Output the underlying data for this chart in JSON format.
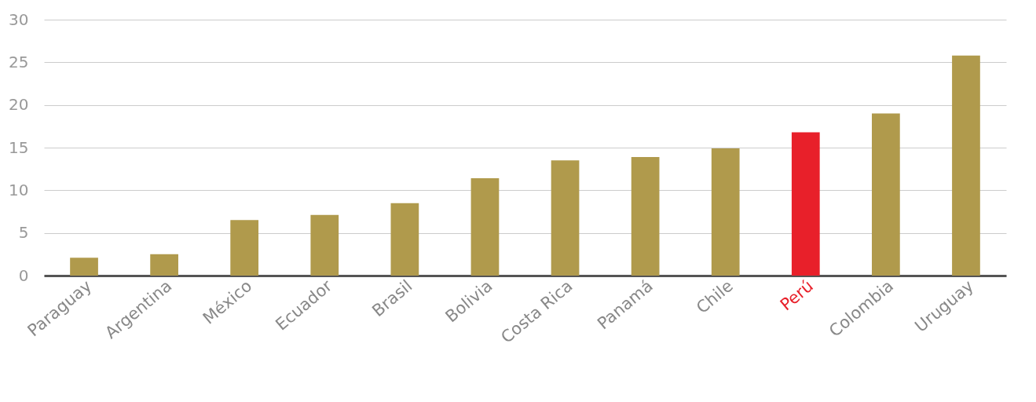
{
  "chart_data": {
    "type": "bar",
    "categories": [
      "Paraguay",
      "Argentina",
      "México",
      "Ecuador",
      "Brasil",
      "Bolivia",
      "Costa Rica",
      "Panamá",
      "Chile",
      "Perú",
      "Colombia",
      "Uruguay"
    ],
    "values": [
      2.1,
      2.5,
      6.5,
      7.1,
      8.5,
      11.4,
      13.5,
      13.9,
      14.9,
      16.8,
      19.0,
      25.8
    ],
    "colors": [
      "#b09a4c",
      "#b09a4c",
      "#b09a4c",
      "#b09a4c",
      "#b09a4c",
      "#b09a4c",
      "#b09a4c",
      "#b09a4c",
      "#b09a4c",
      "#e8202a",
      "#b09a4c",
      "#b09a4c"
    ],
    "ylim": [
      0,
      30
    ],
    "yticks": [
      0,
      5,
      10,
      15,
      20,
      25,
      30
    ],
    "grid": "y"
  }
}
